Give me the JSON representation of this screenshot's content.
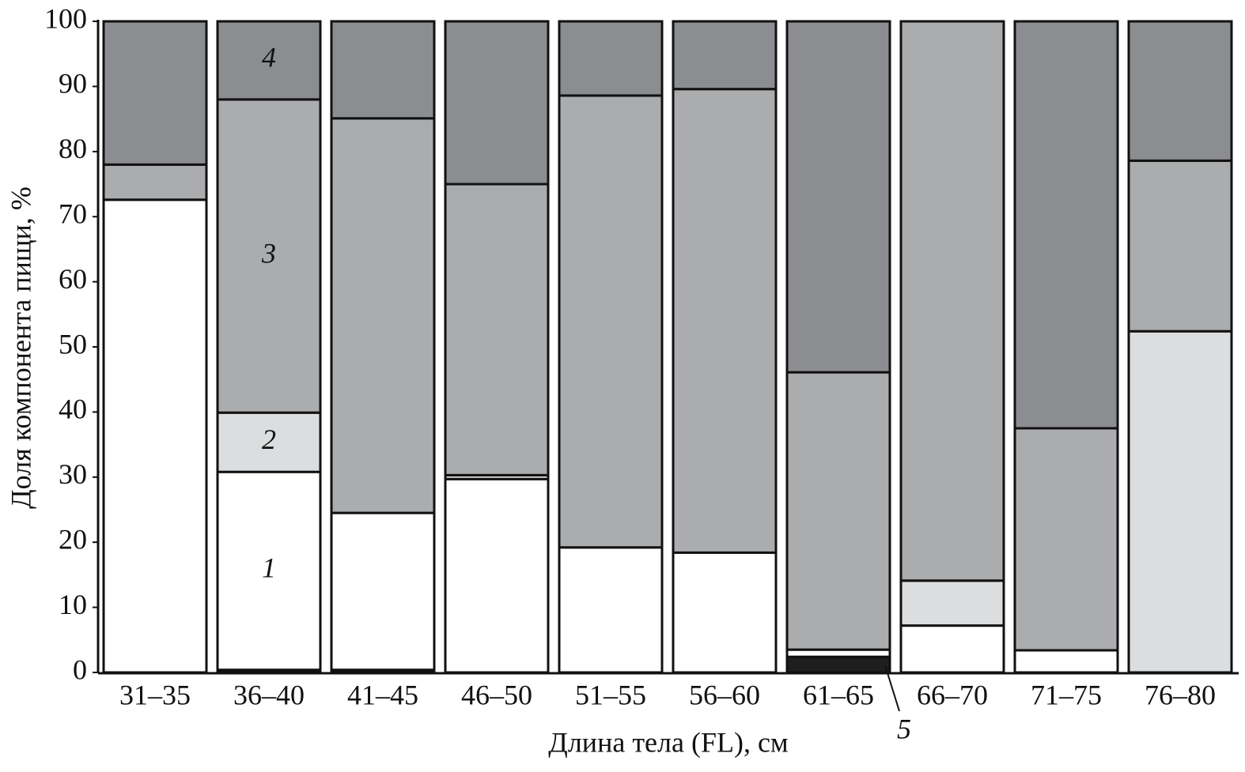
{
  "chart_data": {
    "type": "stacked_bar",
    "xlabel": "Длина тела (FL), см",
    "ylabel": "Доля компонента пищи, %",
    "categories": [
      "31–35",
      "36–40",
      "41–45",
      "46–50",
      "51–55",
      "56–60",
      "61–65",
      "66–70",
      "71–75",
      "76–80"
    ],
    "series": [
      {
        "name": "5",
        "color": "#1e1e1e",
        "values": [
          0,
          0.4,
          0.4,
          0,
          0,
          0,
          2.4,
          0,
          0,
          0
        ]
      },
      {
        "name": "1",
        "color": "#ffffff",
        "values": [
          72.6,
          30.4,
          24.1,
          29.7,
          19.2,
          18.4,
          1.1,
          7.2,
          3.4,
          0
        ]
      },
      {
        "name": "2",
        "color": "#dcdddf",
        "values": [
          0,
          9.1,
          0,
          0.6,
          0,
          0,
          0,
          6.9,
          0,
          52.4
        ]
      },
      {
        "name": "3",
        "color": "#abacae",
        "values": [
          5.4,
          48.1,
          60.6,
          44.7,
          69.4,
          71.2,
          42.6,
          85.9,
          34.1,
          26.2
        ]
      },
      {
        "name": "4",
        "color": "#8c8d90",
        "values": [
          22.0,
          12.0,
          14.9,
          25.0,
          11.4,
          10.4,
          53.9,
          0,
          62.5,
          21.4
        ]
      }
    ],
    "ylim": [
      0,
      100
    ],
    "yticks": [
      0,
      10,
      20,
      30,
      40,
      50,
      60,
      70,
      80,
      90,
      100
    ]
  }
}
